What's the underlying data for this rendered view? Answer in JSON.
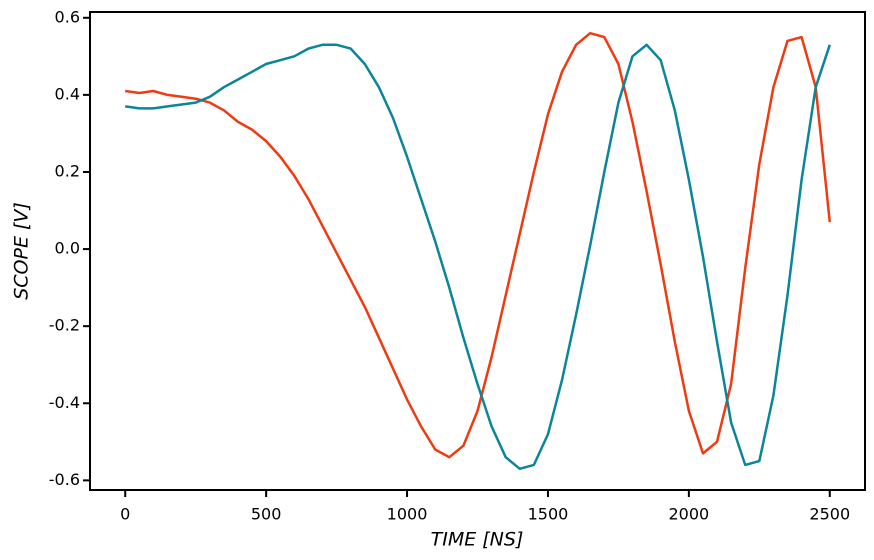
{
  "chart_data": {
    "type": "line",
    "xlabel": "TIME [NS]",
    "ylabel": "SCOPE [V]",
    "x": [
      0,
      50,
      100,
      150,
      200,
      250,
      300,
      350,
      400,
      450,
      500,
      550,
      600,
      650,
      700,
      750,
      800,
      850,
      900,
      950,
      1000,
      1050,
      1100,
      1150,
      1200,
      1250,
      1300,
      1350,
      1400,
      1450,
      1500,
      1550,
      1600,
      1650,
      1700,
      1750,
      1800,
      1850,
      1900,
      1950,
      2000,
      2050,
      2100,
      2150,
      2200,
      2250,
      2300,
      2350,
      2400,
      2450,
      2500
    ],
    "series": [
      {
        "color": "#f03a10",
        "values": [
          0.41,
          0.405,
          0.41,
          0.4,
          0.395,
          0.39,
          0.38,
          0.36,
          0.33,
          0.31,
          0.28,
          0.24,
          0.19,
          0.13,
          0.06,
          -0.01,
          -0.08,
          -0.15,
          -0.23,
          -0.31,
          -0.39,
          -0.46,
          -0.52,
          -0.54,
          -0.51,
          -0.42,
          -0.28,
          -0.12,
          0.04,
          0.2,
          0.35,
          0.46,
          0.53,
          0.56,
          0.55,
          0.48,
          0.33,
          0.15,
          -0.04,
          -0.24,
          -0.42,
          -0.53,
          -0.5,
          -0.35,
          -0.05,
          0.22,
          0.42,
          0.54,
          0.55,
          0.42,
          0.07
        ]
      },
      {
        "color": "#0a8599",
        "values": [
          0.37,
          0.365,
          0.365,
          0.37,
          0.375,
          0.38,
          0.395,
          0.42,
          0.44,
          0.46,
          0.48,
          0.49,
          0.5,
          0.52,
          0.53,
          0.53,
          0.52,
          0.48,
          0.42,
          0.34,
          0.24,
          0.13,
          0.02,
          -0.1,
          -0.23,
          -0.35,
          -0.46,
          -0.54,
          -0.57,
          -0.56,
          -0.48,
          -0.34,
          -0.17,
          0.01,
          0.2,
          0.38,
          0.5,
          0.53,
          0.49,
          0.36,
          0.18,
          -0.02,
          -0.24,
          -0.45,
          -0.56,
          -0.55,
          -0.38,
          -0.12,
          0.18,
          0.42,
          0.53
        ]
      }
    ],
    "xlim": [
      -125,
      2625
    ],
    "xticks": [
      0,
      500,
      1000,
      1500,
      2000,
      2500
    ],
    "ylim": [
      -0.625,
      0.615
    ],
    "yticks": [
      -0.6,
      -0.4,
      -0.2,
      {
        "value": 0,
        "label": "0.0"
      },
      0.2,
      0.4,
      0.6
    ]
  }
}
